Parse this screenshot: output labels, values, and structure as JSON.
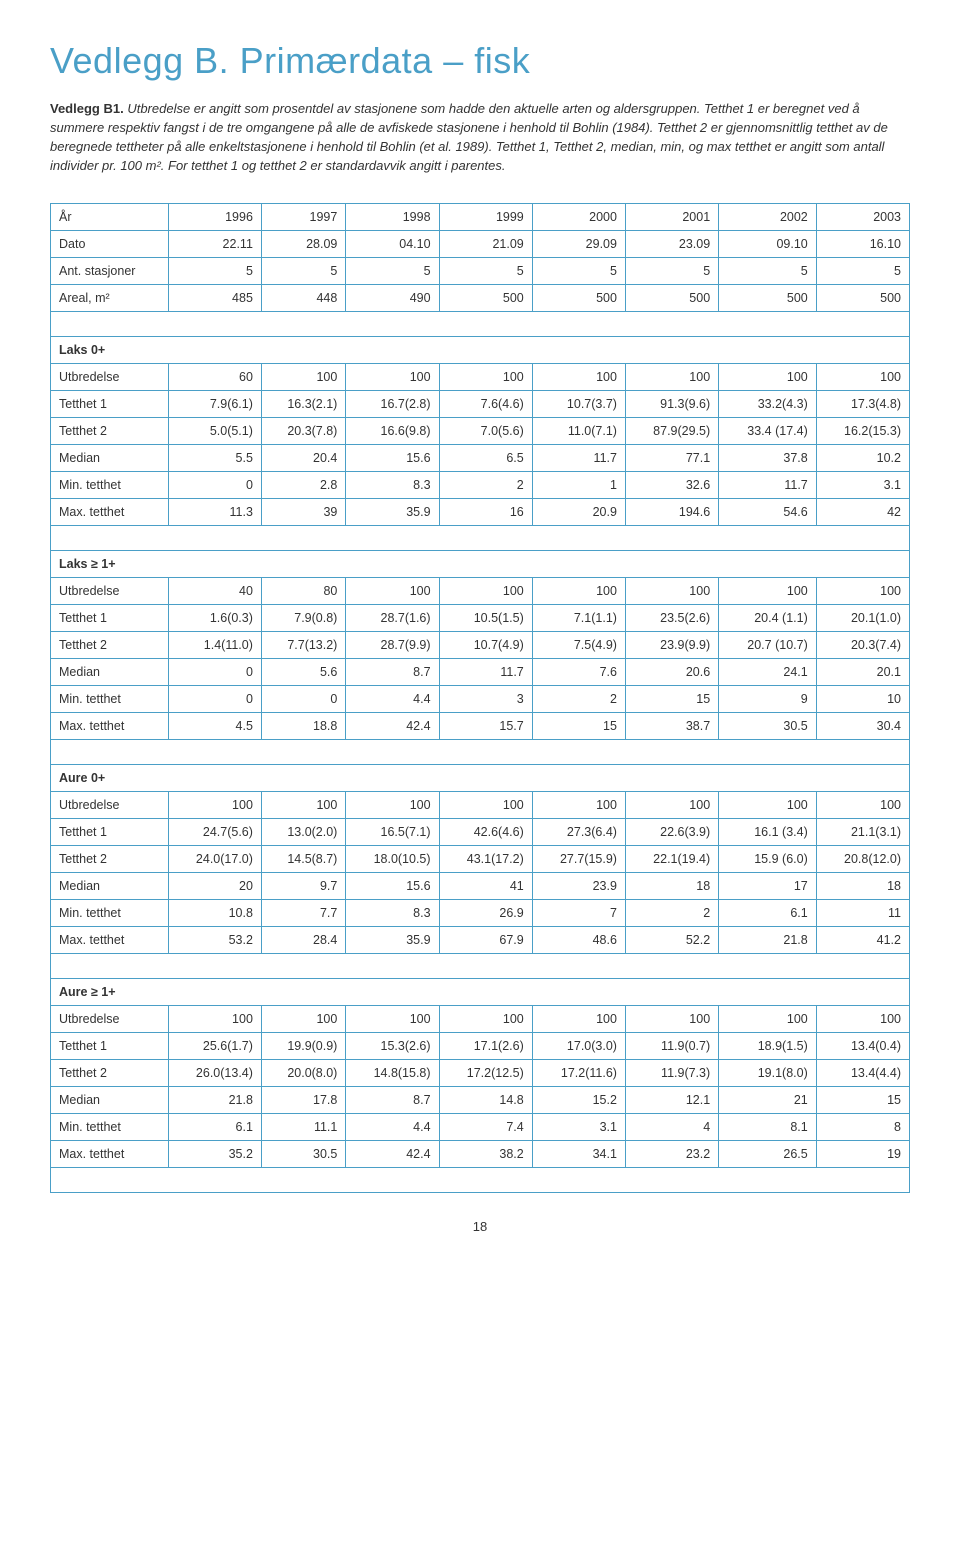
{
  "title": "Vedlegg B. Primærdata – fisk",
  "intro_bold": "Vedlegg B1.",
  "intro_text": " Utbredelse er angitt som prosentdel av stasjonene som hadde den aktuelle arten og aldersgruppen. Tetthet 1 er beregnet ved å summere respektiv fangst i de tre omgangene på alle de avfiskede stasjonene i henhold til Bohlin (1984). Tetthet 2 er gjennomsnittlig tetthet av de beregnede tettheter på alle enkeltstasjonene i henhold til Bohlin (et al. 1989). Tetthet 1, Tetthet 2, median, min, og max tetthet er angitt som antall individer pr. 100 m². For tetthet 1 og tetthet 2 er standardavvik angitt i parentes.",
  "page_number": "18",
  "columns": [
    "",
    "1996",
    "1997",
    "1998",
    "1999",
    "2000",
    "2001",
    "2002",
    "2003"
  ],
  "top_rows": [
    {
      "label": "År",
      "vals": [
        "1996",
        "1997",
        "1998",
        "1999",
        "2000",
        "2001",
        "2002",
        "2003"
      ]
    },
    {
      "label": "Dato",
      "vals": [
        "22.11",
        "28.09",
        "04.10",
        "21.09",
        "29.09",
        "23.09",
        "09.10",
        "16.10"
      ]
    },
    {
      "label": "Ant. stasjoner",
      "vals": [
        "5",
        "5",
        "5",
        "5",
        "5",
        "5",
        "5",
        "5"
      ]
    },
    {
      "label": "Areal, m²",
      "vals": [
        "485",
        "448",
        "490",
        "500",
        "500",
        "500",
        "500",
        "500"
      ]
    }
  ],
  "sections": [
    {
      "heading": "Laks 0+",
      "rows": [
        {
          "label": "Utbredelse",
          "vals": [
            "60",
            "100",
            "100",
            "100",
            "100",
            "100",
            "100",
            "100"
          ]
        },
        {
          "label": "Tetthet 1",
          "vals": [
            "7.9(6.1)",
            "16.3(2.1)",
            "16.7(2.8)",
            "7.6(4.6)",
            "10.7(3.7)",
            "91.3(9.6)",
            "33.2(4.3)",
            "17.3(4.8)"
          ]
        },
        {
          "label": "Tetthet 2",
          "vals": [
            "5.0(5.1)",
            "20.3(7.8)",
            "16.6(9.8)",
            "7.0(5.6)",
            "11.0(7.1)",
            "87.9(29.5)",
            "33.4 (17.4)",
            "16.2(15.3)"
          ]
        },
        {
          "label": "Median",
          "vals": [
            "5.5",
            "20.4",
            "15.6",
            "6.5",
            "11.7",
            "77.1",
            "37.8",
            "10.2"
          ]
        },
        {
          "label": "Min. tetthet",
          "vals": [
            "0",
            "2.8",
            "8.3",
            "2",
            "1",
            "32.6",
            "11.7",
            "3.1"
          ]
        },
        {
          "label": "Max. tetthet",
          "vals": [
            "11.3",
            "39",
            "35.9",
            "16",
            "20.9",
            "194.6",
            "54.6",
            "42"
          ]
        }
      ]
    },
    {
      "heading": "Laks ≥ 1+",
      "rows": [
        {
          "label": "Utbredelse",
          "vals": [
            "40",
            "80",
            "100",
            "100",
            "100",
            "100",
            "100",
            "100"
          ]
        },
        {
          "label": "Tetthet 1",
          "vals": [
            "1.6(0.3)",
            "7.9(0.8)",
            "28.7(1.6)",
            "10.5(1.5)",
            "7.1(1.1)",
            "23.5(2.6)",
            "20.4 (1.1)",
            "20.1(1.0)"
          ]
        },
        {
          "label": "Tetthet 2",
          "vals": [
            "1.4(11.0)",
            "7.7(13.2)",
            "28.7(9.9)",
            "10.7(4.9)",
            "7.5(4.9)",
            "23.9(9.9)",
            "20.7 (10.7)",
            "20.3(7.4)"
          ]
        },
        {
          "label": "Median",
          "vals": [
            "0",
            "5.6",
            "8.7",
            "11.7",
            "7.6",
            "20.6",
            "24.1",
            "20.1"
          ]
        },
        {
          "label": "Min. tetthet",
          "vals": [
            "0",
            "0",
            "4.4",
            "3",
            "2",
            "15",
            "9",
            "10"
          ]
        },
        {
          "label": "Max. tetthet",
          "vals": [
            "4.5",
            "18.8",
            "42.4",
            "15.7",
            "15",
            "38.7",
            "30.5",
            "30.4"
          ]
        }
      ]
    },
    {
      "heading": "Aure 0+",
      "rows": [
        {
          "label": "Utbredelse",
          "vals": [
            "100",
            "100",
            "100",
            "100",
            "100",
            "100",
            "100",
            "100"
          ]
        },
        {
          "label": "Tetthet 1",
          "vals": [
            "24.7(5.6)",
            "13.0(2.0)",
            "16.5(7.1)",
            "42.6(4.6)",
            "27.3(6.4)",
            "22.6(3.9)",
            "16.1 (3.4)",
            "21.1(3.1)"
          ]
        },
        {
          "label": "Tetthet 2",
          "vals": [
            "24.0(17.0)",
            "14.5(8.7)",
            "18.0(10.5)",
            "43.1(17.2)",
            "27.7(15.9)",
            "22.1(19.4)",
            "15.9 (6.0)",
            "20.8(12.0)"
          ]
        },
        {
          "label": "Median",
          "vals": [
            "20",
            "9.7",
            "15.6",
            "41",
            "23.9",
            "18",
            "17",
            "18"
          ]
        },
        {
          "label": "Min. tetthet",
          "vals": [
            "10.8",
            "7.7",
            "8.3",
            "26.9",
            "7",
            "2",
            "6.1",
            "11"
          ]
        },
        {
          "label": "Max. tetthet",
          "vals": [
            "53.2",
            "28.4",
            "35.9",
            "67.9",
            "48.6",
            "52.2",
            "21.8",
            "41.2"
          ]
        }
      ]
    },
    {
      "heading": "Aure ≥ 1+",
      "rows": [
        {
          "label": "Utbredelse",
          "vals": [
            "100",
            "100",
            "100",
            "100",
            "100",
            "100",
            "100",
            "100"
          ]
        },
        {
          "label": "Tetthet 1",
          "vals": [
            "25.6(1.7)",
            "19.9(0.9)",
            "15.3(2.6)",
            "17.1(2.6)",
            "17.0(3.0)",
            "11.9(0.7)",
            "18.9(1.5)",
            "13.4(0.4)"
          ]
        },
        {
          "label": "Tetthet 2",
          "vals": [
            "26.0(13.4)",
            "20.0(8.0)",
            "14.8(15.8)",
            "17.2(12.5)",
            "17.2(11.6)",
            "11.9(7.3)",
            "19.1(8.0)",
            "13.4(4.4)"
          ]
        },
        {
          "label": "Median",
          "vals": [
            "21.8",
            "17.8",
            "8.7",
            "14.8",
            "15.2",
            "12.1",
            "21",
            "15"
          ]
        },
        {
          "label": "Min. tetthet",
          "vals": [
            "6.1",
            "11.1",
            "4.4",
            "7.4",
            "3.1",
            "4",
            "8.1",
            "8"
          ]
        },
        {
          "label": "Max. tetthet",
          "vals": [
            "35.2",
            "30.5",
            "42.4",
            "38.2",
            "34.1",
            "23.2",
            "26.5",
            "19"
          ]
        }
      ]
    }
  ],
  "style": {
    "title_color": "#4a9fc7",
    "border_color": "#4a9fc7",
    "font_family": "Arial, Helvetica, sans-serif",
    "title_fontsize": 36,
    "body_fontsize": 13,
    "table_fontsize": 12.5,
    "background": "#ffffff",
    "text_color": "#333333"
  }
}
